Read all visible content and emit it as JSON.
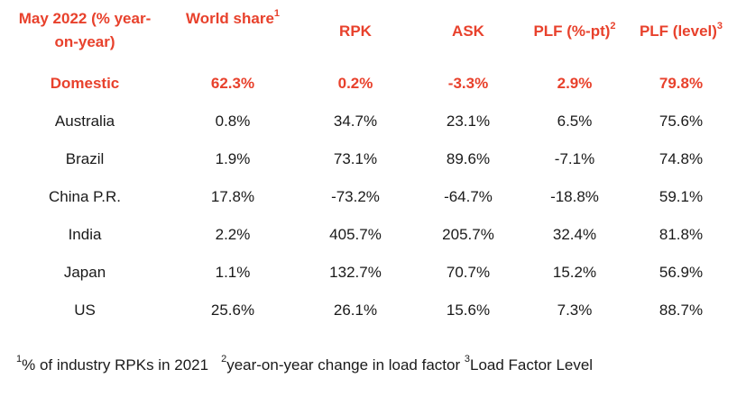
{
  "table": {
    "headers": {
      "period": "May 2022 (% year-on-year)",
      "world_share": "World share",
      "world_share_sup": "1",
      "rpk": "RPK",
      "ask": "ASK",
      "plf_pt": "PLF (%-pt)",
      "plf_pt_sup": "2",
      "plf_level": "PLF (level)",
      "plf_level_sup": "3"
    },
    "rows": [
      {
        "name": "Domestic",
        "world_share": "62.3%",
        "rpk": "0.2%",
        "ask": "-3.3%",
        "plf_pt": "2.9%",
        "plf_level": "79.8%"
      },
      {
        "name": "Australia",
        "world_share": "0.8%",
        "rpk": "34.7%",
        "ask": "23.1%",
        "plf_pt": "6.5%",
        "plf_level": "75.6%"
      },
      {
        "name": "Brazil",
        "world_share": "1.9%",
        "rpk": "73.1%",
        "ask": "89.6%",
        "plf_pt": "-7.1%",
        "plf_level": "74.8%"
      },
      {
        "name": "China P.R.",
        "world_share": "17.8%",
        "rpk": "-73.2%",
        "ask": "-64.7%",
        "plf_pt": "-18.8%",
        "plf_level": "59.1%"
      },
      {
        "name": "India",
        "world_share": "2.2%",
        "rpk": "405.7%",
        "ask": "205.7%",
        "plf_pt": "32.4%",
        "plf_level": "81.8%"
      },
      {
        "name": "Japan",
        "world_share": "1.1%",
        "rpk": "132.7%",
        "ask": "70.7%",
        "plf_pt": "15.2%",
        "plf_level": "56.9%"
      },
      {
        "name": "US",
        "world_share": "25.6%",
        "rpk": "26.1%",
        "ask": "15.6%",
        "plf_pt": "7.3%",
        "plf_level": "88.7%"
      }
    ]
  },
  "footnotes": {
    "n1_sup": "1",
    "n1_text": "% of industry RPKs in 2021",
    "n2_sup": "2",
    "n2_text": "year-on-year change in load factor",
    "n3_sup": "3",
    "n3_text": "Load Factor Level"
  },
  "colors": {
    "accent": "#e8412c",
    "text": "#1a1a1a"
  }
}
